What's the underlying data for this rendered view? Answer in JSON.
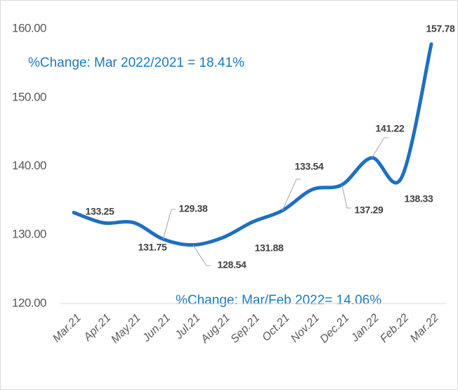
{
  "chart_data": {
    "type": "line",
    "categories": [
      "Mar.21",
      "Apr.21",
      "May.21",
      "Jun.21",
      "Jul.21",
      "Aug.21",
      "Sep.21",
      "Oct.21",
      "Nov.21",
      "Dec.21",
      "Jan.22",
      "Feb.22",
      "Mar.22"
    ],
    "values": [
      133.25,
      131.75,
      131.8,
      129.38,
      128.54,
      129.6,
      131.88,
      133.54,
      136.6,
      137.29,
      141.22,
      138.33,
      157.78
    ],
    "value_labels": [
      "133.25",
      "131.75",
      null,
      "129.38",
      "128.54",
      null,
      "131.88",
      "133.54",
      null,
      "137.29",
      "141.22",
      "138.33",
      "157.78"
    ],
    "color": "#1f6fc1",
    "ylim": [
      120,
      163
    ],
    "yticks": [
      {
        "value": 120,
        "label": "120.00"
      },
      {
        "value": 130,
        "label": "130.00"
      },
      {
        "value": 140,
        "label": "140.00"
      },
      {
        "value": 150,
        "label": "150.00"
      },
      {
        "value": 160,
        "label": "160.00"
      }
    ],
    "grid": false,
    "annotations": [
      "%Change: Mar 2022/2021 = 18.41%",
      "%Change: Mar/Feb 2022= 14.06%"
    ]
  }
}
